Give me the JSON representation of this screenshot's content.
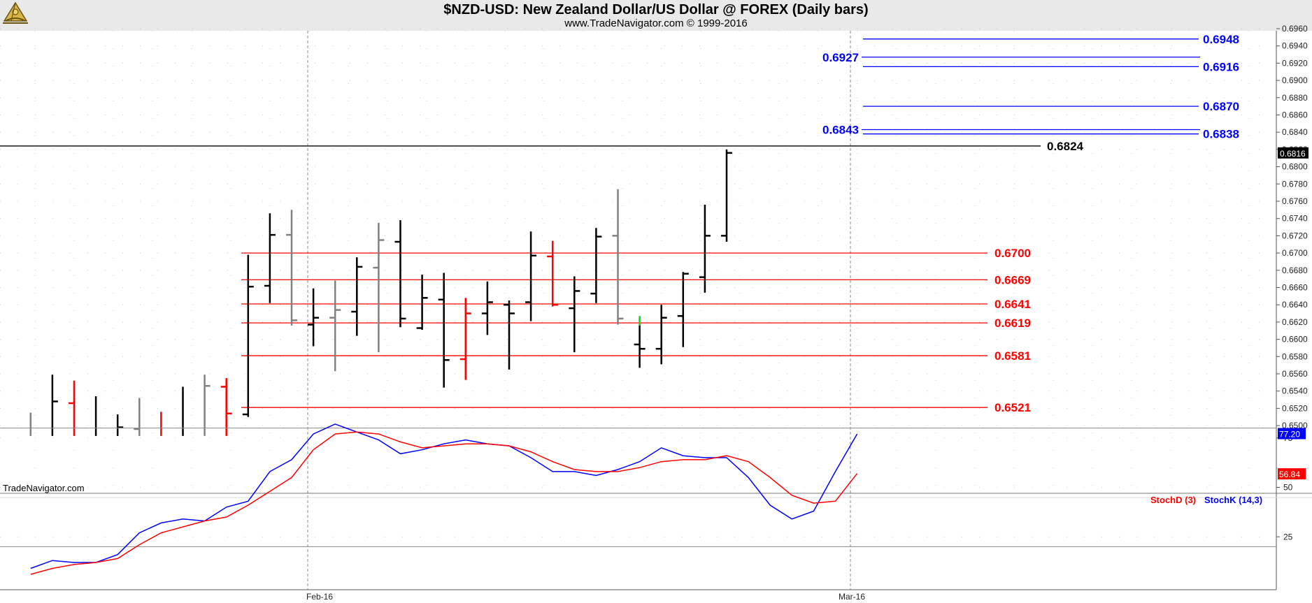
{
  "header": {
    "title": "$NZD-USD:  New Zealand Dollar/US Dollar @ FOREX  (Daily bars)",
    "subtitle": "www.TradeNavigator.com © 1999-2016",
    "watermark": "TradeNavigator.com"
  },
  "colors": {
    "bar_up": "#000000",
    "bar_down_gray": "#808080",
    "bar_red": "#ff0000",
    "bar_green": "#00dd00",
    "level_red": "#ff0000",
    "level_blue": "#0000ff",
    "stoch_k": "#0000ff",
    "stoch_d": "#ff0000",
    "header_bg": "#e9e9e9"
  },
  "chart_data": [
    {
      "type": "ohlc",
      "title": "$NZD-USD:  New Zealand Dollar/US Dollar @ FOREX  (Daily bars)",
      "x_tick_labels": [
        "Feb-16",
        "Mar-16"
      ],
      "y_tick_labels": [
        "0.6960",
        "0.6940",
        "0.6920",
        "0.6900",
        "0.6880",
        "0.6860",
        "0.6840",
        "0.6820",
        "0.6800",
        "0.6780",
        "0.6760",
        "0.6740",
        "0.6720",
        "0.6700",
        "0.6680",
        "0.6660",
        "0.6640",
        "0.6620",
        "0.6600",
        "0.6580",
        "0.6560",
        "0.6540",
        "0.6520",
        "0.6500"
      ],
      "ylim": [
        0.6488,
        0.6967
      ],
      "last_price_label": "0.6816",
      "bars": [
        {
          "o": null,
          "h": 0.6515,
          "l": 0.6488,
          "c": null,
          "color": "gray"
        },
        {
          "o": null,
          "h": 0.6559,
          "l": 0.6488,
          "c": 0.6528,
          "color": "black"
        },
        {
          "o": 0.6526,
          "h": 0.6552,
          "l": 0.6488,
          "c": null,
          "color": "red"
        },
        {
          "o": null,
          "h": 0.6534,
          "l": 0.6488,
          "c": null,
          "color": "black"
        },
        {
          "o": null,
          "h": 0.6513,
          "l": 0.6488,
          "c": 0.6498,
          "color": "black"
        },
        {
          "o": 0.6496,
          "h": 0.6532,
          "l": 0.6488,
          "c": null,
          "color": "gray"
        },
        {
          "o": null,
          "h": 0.6516,
          "l": 0.6488,
          "c": null,
          "color": "red"
        },
        {
          "o": null,
          "h": 0.6545,
          "l": 0.6488,
          "c": null,
          "color": "black"
        },
        {
          "o": null,
          "h": 0.6559,
          "l": 0.6488,
          "c": 0.6546,
          "color": "gray"
        },
        {
          "o": 0.6545,
          "h": 0.6555,
          "l": 0.6488,
          "c": 0.6514,
          "color": "red"
        },
        {
          "o": 0.6513,
          "h": 0.6698,
          "l": 0.651,
          "c": 0.6661,
          "color": "black"
        },
        {
          "o": 0.6662,
          "h": 0.6746,
          "l": 0.6642,
          "c": 0.6721,
          "color": "black"
        },
        {
          "o": 0.6721,
          "h": 0.675,
          "l": 0.6616,
          "c": 0.6622,
          "color": "gray"
        },
        {
          "o": 0.6617,
          "h": 0.6659,
          "l": 0.6592,
          "c": 0.6625,
          "color": "black"
        },
        {
          "o": 0.6625,
          "h": 0.6668,
          "l": 0.6563,
          "c": 0.6634,
          "color": "gray"
        },
        {
          "o": 0.6632,
          "h": 0.6695,
          "l": 0.6604,
          "c": 0.6684,
          "color": "black"
        },
        {
          "o": 0.6683,
          "h": 0.6735,
          "l": 0.6585,
          "c": 0.6715,
          "color": "gray"
        },
        {
          "o": 0.6713,
          "h": 0.6738,
          "l": 0.6614,
          "c": 0.6624,
          "color": "black"
        },
        {
          "o": 0.6613,
          "h": 0.6675,
          "l": 0.6611,
          "c": 0.6648,
          "color": "black"
        },
        {
          "o": 0.6646,
          "h": 0.6677,
          "l": 0.6544,
          "c": 0.6576,
          "color": "black"
        },
        {
          "o": 0.6577,
          "h": 0.6648,
          "l": 0.6553,
          "c": 0.663,
          "color": "red"
        },
        {
          "o": 0.663,
          "h": 0.6667,
          "l": 0.6605,
          "c": 0.6643,
          "color": "black"
        },
        {
          "o": 0.664,
          "h": 0.6645,
          "l": 0.6565,
          "c": 0.663,
          "color": "black"
        },
        {
          "o": 0.6643,
          "h": 0.6725,
          "l": 0.6621,
          "c": 0.6697,
          "color": "black"
        },
        {
          "o": 0.6696,
          "h": 0.6714,
          "l": 0.6638,
          "c": 0.664,
          "color": "red"
        },
        {
          "o": 0.6636,
          "h": 0.6673,
          "l": 0.6585,
          "c": 0.6656,
          "color": "black"
        },
        {
          "o": 0.6653,
          "h": 0.6729,
          "l": 0.6642,
          "c": 0.6719,
          "color": "black"
        },
        {
          "o": 0.672,
          "h": 0.6774,
          "l": 0.6617,
          "c": 0.6624,
          "color": "gray"
        },
        {
          "o": 0.6594,
          "h": 0.6627,
          "l": 0.6567,
          "c": 0.6589,
          "color": "black",
          "wick_top_color": "green",
          "wick_top_from": 0.6616
        },
        {
          "o": 0.6589,
          "h": 0.664,
          "l": 0.6571,
          "c": 0.6625,
          "color": "black"
        },
        {
          "o": 0.6627,
          "h": 0.6678,
          "l": 0.6591,
          "c": 0.6676,
          "color": "black"
        },
        {
          "o": 0.6672,
          "h": 0.6756,
          "l": 0.6654,
          "c": 0.672,
          "color": "black"
        },
        {
          "o": 0.672,
          "h": 0.682,
          "l": 0.6713,
          "c": 0.6816,
          "color": "black"
        }
      ],
      "levels": [
        {
          "value": 0.6948,
          "label": "0.6948",
          "color": "blue",
          "side": "right"
        },
        {
          "value": 0.6927,
          "label": "0.6927",
          "color": "blue",
          "side": "left"
        },
        {
          "value": 0.6916,
          "label": "0.6916",
          "color": "blue",
          "side": "right"
        },
        {
          "value": 0.687,
          "label": "0.6870",
          "color": "blue",
          "side": "right"
        },
        {
          "value": 0.6843,
          "label": "0.6843",
          "color": "blue",
          "side": "left"
        },
        {
          "value": 0.6838,
          "label": "0.6838",
          "color": "blue",
          "side": "right"
        },
        {
          "value": 0.6824,
          "label": "0.6824",
          "color": "black",
          "side": "right"
        },
        {
          "value": 0.67,
          "label": "0.6700",
          "color": "red",
          "side": "right"
        },
        {
          "value": 0.6669,
          "label": "0.6669",
          "color": "red",
          "side": "right"
        },
        {
          "value": 0.6641,
          "label": "0.6641",
          "color": "red",
          "side": "right"
        },
        {
          "value": 0.6619,
          "label": "0.6619",
          "color": "red",
          "side": "right"
        },
        {
          "value": 0.6581,
          "label": "0.6581",
          "color": "red",
          "side": "right"
        },
        {
          "value": 0.6521,
          "label": "0.6521",
          "color": "red",
          "side": "right"
        }
      ]
    },
    {
      "type": "line",
      "legend": [
        "StochD (3)",
        "StochK (14,3)"
      ],
      "y_tick_labels": [
        "75",
        "50",
        "25"
      ],
      "reference_lines": [
        80,
        20
      ],
      "ylim": [
        0,
        100
      ],
      "last_k_label": "77.20",
      "last_d_label": "56.84",
      "series": [
        {
          "name": "StochK (14,3)",
          "color": "blue",
          "values": [
            9,
            13,
            12,
            12,
            16,
            27,
            32,
            34,
            33,
            40,
            43,
            58,
            64,
            77,
            82,
            78,
            74,
            67,
            69,
            72,
            74,
            72,
            71,
            65,
            58,
            58,
            56,
            59,
            63,
            70,
            66,
            65,
            65,
            55,
            41,
            34,
            38,
            58,
            77
          ]
        },
        {
          "name": "StochD (3)",
          "color": "red",
          "values": [
            6,
            9,
            11,
            12,
            14,
            21,
            27,
            30,
            33,
            35,
            41,
            48,
            55,
            69,
            77,
            78,
            77,
            73,
            70,
            71,
            72,
            72,
            71,
            68,
            63,
            59,
            58,
            58,
            60,
            63,
            64,
            64,
            66,
            63,
            55,
            46,
            42,
            43,
            57
          ]
        }
      ]
    }
  ]
}
